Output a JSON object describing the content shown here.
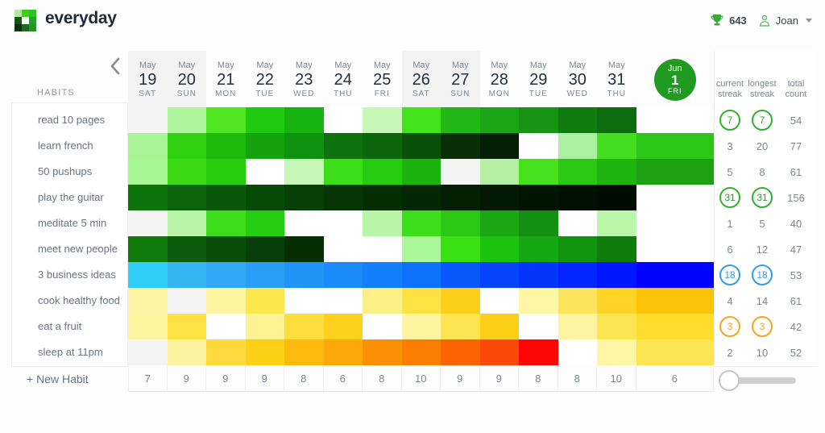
{
  "app": {
    "name": "everyday"
  },
  "topbar": {
    "score": "643",
    "user": "Joan"
  },
  "sidebar": {
    "title": "HABITS",
    "new_habit_label": "+ New Habit"
  },
  "streak_columns": {
    "current": "current streak",
    "longest": "longest streak",
    "total": "total count"
  },
  "dates": [
    {
      "month": "May",
      "day": "19",
      "dow": "SAT",
      "weekend": true,
      "today": false
    },
    {
      "month": "May",
      "day": "20",
      "dow": "SUN",
      "weekend": true,
      "today": false
    },
    {
      "month": "May",
      "day": "21",
      "dow": "MON",
      "weekend": false,
      "today": false
    },
    {
      "month": "May",
      "day": "22",
      "dow": "TUE",
      "weekend": false,
      "today": false
    },
    {
      "month": "May",
      "day": "23",
      "dow": "WED",
      "weekend": false,
      "today": false
    },
    {
      "month": "May",
      "day": "24",
      "dow": "THU",
      "weekend": false,
      "today": false
    },
    {
      "month": "May",
      "day": "25",
      "dow": "FRI",
      "weekend": false,
      "today": false
    },
    {
      "month": "May",
      "day": "26",
      "dow": "SAT",
      "weekend": true,
      "today": false
    },
    {
      "month": "May",
      "day": "27",
      "dow": "SUN",
      "weekend": true,
      "today": false
    },
    {
      "month": "May",
      "day": "28",
      "dow": "MON",
      "weekend": false,
      "today": false
    },
    {
      "month": "May",
      "day": "29",
      "dow": "TUE",
      "weekend": false,
      "today": false
    },
    {
      "month": "May",
      "day": "30",
      "dow": "WED",
      "weekend": false,
      "today": false
    },
    {
      "month": "May",
      "day": "31",
      "dow": "THU",
      "weekend": false,
      "today": false
    },
    {
      "month": "Jun",
      "day": "1",
      "dow": "FRI",
      "weekend": false,
      "today": true
    }
  ],
  "habits": [
    {
      "name": "read 10 pages",
      "current": "7",
      "longest": "7",
      "total": "54",
      "circle": "green"
    },
    {
      "name": "learn french",
      "current": "3",
      "longest": "20",
      "total": "77",
      "circle": null
    },
    {
      "name": "50 pushups",
      "current": "5",
      "longest": "8",
      "total": "61",
      "circle": null
    },
    {
      "name": "play the guitar",
      "current": "31",
      "longest": "31",
      "total": "156",
      "circle": "green"
    },
    {
      "name": "meditate 5 min",
      "current": "1",
      "longest": "5",
      "total": "40",
      "circle": null
    },
    {
      "name": "meet new people",
      "current": "6",
      "longest": "12",
      "total": "47",
      "circle": null
    },
    {
      "name": "3 business ideas",
      "current": "18",
      "longest": "18",
      "total": "53",
      "circle": "blue"
    },
    {
      "name": "cook healthy food",
      "current": "4",
      "longest": "14",
      "total": "61",
      "circle": null
    },
    {
      "name": "eat a fruit",
      "current": "3",
      "longest": "3",
      "total": "42",
      "circle": "orange"
    },
    {
      "name": "sleep at 11pm",
      "current": "2",
      "longest": "10",
      "total": "52",
      "circle": null
    }
  ],
  "daily_totals": [
    "7",
    "9",
    "9",
    "9",
    "8",
    "6",
    "8",
    "10",
    "9",
    "9",
    "8",
    "8",
    "10",
    "6"
  ],
  "grid_colors": [
    [
      "#f4f4f4",
      "#aef49c",
      "#4fe520",
      "#1ec90f",
      "#17b40f",
      "#ffffff",
      "#c6f7b6",
      "#43e31b",
      "#22b816",
      "#1ca516",
      "#179413",
      "#107c10",
      "#0d6c0d",
      "#ffffff"
    ],
    [
      "#a8f496",
      "#2fd00f",
      "#1fbb0c",
      "#14a30e",
      "#0f9210",
      "#0d720d",
      "#0c660c",
      "#094f09",
      "#0a2e08",
      "#051f04",
      "#ffffff",
      "#aaf0a0",
      "#44dd22",
      "#2cc716"
    ],
    [
      "#a8f795",
      "#3bda13",
      "#28cc0e",
      "#ffffff",
      "#c6f7b6",
      "#3bdd17",
      "#27cc11",
      "#1db30f",
      "#f4f4f4",
      "#b5f0a5",
      "#47e01d",
      "#2cc712",
      "#1fb30f",
      "#1da011"
    ],
    [
      "#0d730d",
      "#0b640b",
      "#0a570a",
      "#084a08",
      "#073f07",
      "#063606",
      "#052e05",
      "#042704",
      "#041f04",
      "#031903",
      "#021402",
      "#021002",
      "#010c01",
      "#ffffff"
    ],
    [
      "#f4f4f4",
      "#b8f5a8",
      "#3edd1b",
      "#24cc12",
      "#ffffff",
      "#ffffff",
      "#b8f5a8",
      "#3edd1b",
      "#2cc714",
      "#1aa814",
      "#129012",
      "#ffffff",
      "#b8f8a8",
      "#ffffff"
    ],
    [
      "#117b0c",
      "#0d5c0d",
      "#0a4d0a",
      "#073d07",
      "#052e05",
      "#ffffff",
      "#ffffff",
      "#aaf89a",
      "#3ae214",
      "#1dc40f",
      "#16a812",
      "#11950e",
      "#107c0a",
      "#ffffff"
    ],
    [
      "#31cff7",
      "#35b4f2",
      "#30a8f4",
      "#2a9ef6",
      "#2294f8",
      "#1b8af9",
      "#147ffb",
      "#0d72fb",
      "#0959fa",
      "#0745fc",
      "#0335fd",
      "#0226fd",
      "#0115fe",
      "#0202ff"
    ],
    [
      "#fbf5a3",
      "#f4f4f4",
      "#fcf49e",
      "#fde74f",
      "#ffffff",
      "#ffffff",
      "#fdf087",
      "#fde243",
      "#fdcf1b",
      "#ffffff",
      "#fdf6a5",
      "#fde35a",
      "#fdd426",
      "#fcc408"
    ],
    [
      "#fcf49e",
      "#fde243",
      "#ffffff",
      "#fcf291",
      "#fdde3c",
      "#fdd01e",
      "#ffffff",
      "#fcf49e",
      "#fde452",
      "#fdcf17",
      "#ffffff",
      "#fdf3a0",
      "#fde452",
      "#fddd2e"
    ],
    [
      "#f4f4f4",
      "#fcf2a0",
      "#fdd93c",
      "#fdcf17",
      "#fdb90d",
      "#fca908",
      "#fb9004",
      "#fb7e02",
      "#fb6303",
      "#fb4708",
      "#fe0606",
      "#ffffff",
      "#fdf6a5",
      "#fde452"
    ]
  ],
  "logo_colors": [
    [
      "#b5e8a5",
      "#3ecf16",
      "#2fc224"
    ],
    [
      "#17541a",
      "#ffffff",
      "#27a02b"
    ],
    [
      "#0c310e",
      "#1d6b20",
      "#26922a"
    ]
  ],
  "colors": {
    "today_circle": "#219a21",
    "ring_green": "#2eb22e",
    "ring_blue": "#2f9cf4",
    "ring_orange": "#f8a41f",
    "weekend_bg": "#f3f3f3"
  }
}
